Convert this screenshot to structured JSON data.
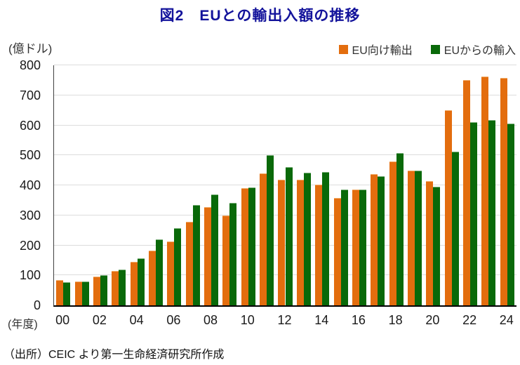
{
  "page": {
    "title": "図2　EUとの輸出入額の推移",
    "y_unit_label": "(億ドル)",
    "x_unit_label": "(年度)",
    "source": "（出所）CEIC より第一生命経済研究所作成"
  },
  "colors": {
    "title_blue": "#13139B",
    "text": "#262626",
    "grid": "#DCDCDC",
    "axis": "#000000",
    "export_orange": "#E36D0E",
    "import_green": "#096909"
  },
  "chart_data": {
    "type": "bar",
    "title": "図2　EUとの輸出入額の推移",
    "ylabel": "(億ドル)",
    "xlabel": "(年度)",
    "ylim": [
      0,
      800
    ],
    "y_ticks": [
      0,
      100,
      200,
      300,
      400,
      500,
      600,
      700,
      800
    ],
    "grid": true,
    "legend_position": "top-right",
    "categories": [
      "00",
      "01",
      "02",
      "03",
      "04",
      "05",
      "06",
      "07",
      "08",
      "09",
      "10",
      "11",
      "12",
      "13",
      "14",
      "15",
      "16",
      "17",
      "18",
      "19",
      "20",
      "21",
      "22",
      "23",
      "24"
    ],
    "x_tick_labels": [
      "00",
      "02",
      "04",
      "06",
      "08",
      "10",
      "12",
      "14",
      "16",
      "18",
      "20",
      "22",
      "24"
    ],
    "series": [
      {
        "name": "EU向け輸出",
        "color": "#E36D0E",
        "edge": "#F2AF6E",
        "values": [
          85,
          80,
          95,
          114,
          145,
          182,
          212,
          279,
          328,
          299,
          390,
          440,
          419,
          419,
          402,
          359,
          387,
          438,
          480,
          450,
          413,
          651,
          750,
          762,
          758
        ]
      },
      {
        "name": "EUからの輸入",
        "color": "#096909",
        "edge": "#7FB27F",
        "values": [
          77,
          80,
          100,
          119,
          156,
          220,
          257,
          335,
          369,
          342,
          392,
          500,
          460,
          441,
          444,
          387,
          387,
          431,
          508,
          450,
          396,
          513,
          611,
          617,
          606
        ]
      }
    ]
  }
}
